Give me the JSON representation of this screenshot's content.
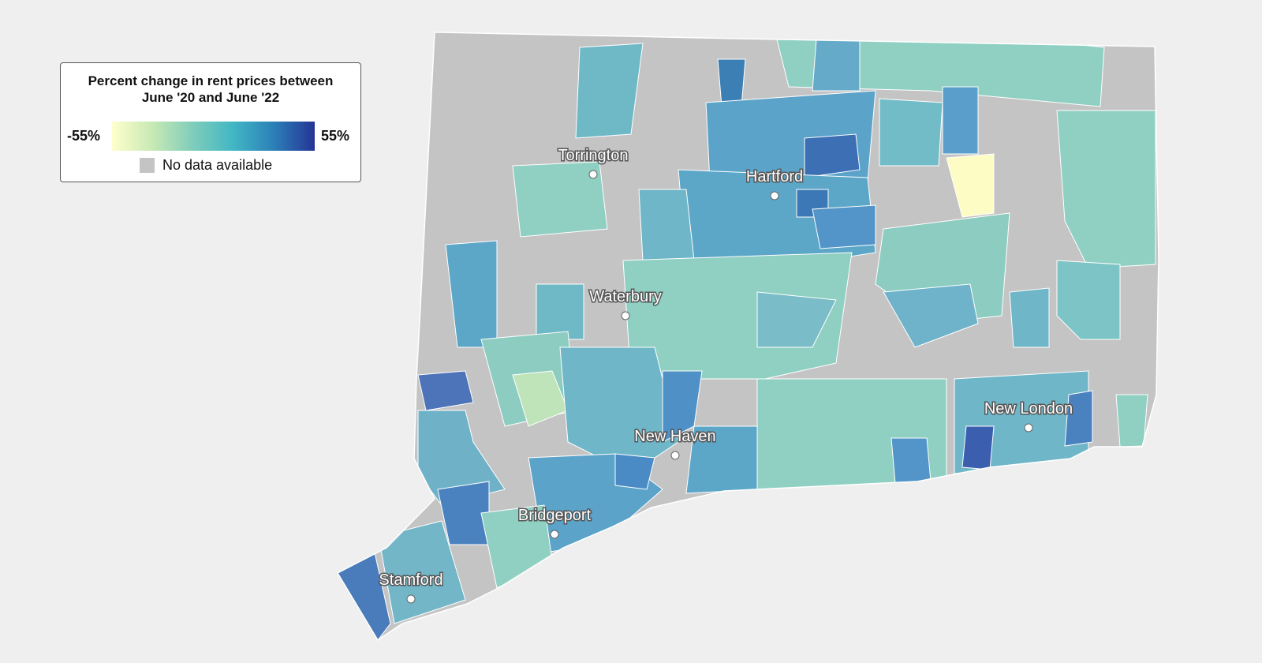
{
  "legend": {
    "title": "Percent change in rent prices between June '20 and June '22",
    "min_label": "-55%",
    "max_label": "55%",
    "no_data": "No data available"
  },
  "cities": [
    "Torrington",
    "Hartford",
    "Waterbury",
    "New Haven",
    "Bridgeport",
    "Stamford",
    "New London"
  ]
}
